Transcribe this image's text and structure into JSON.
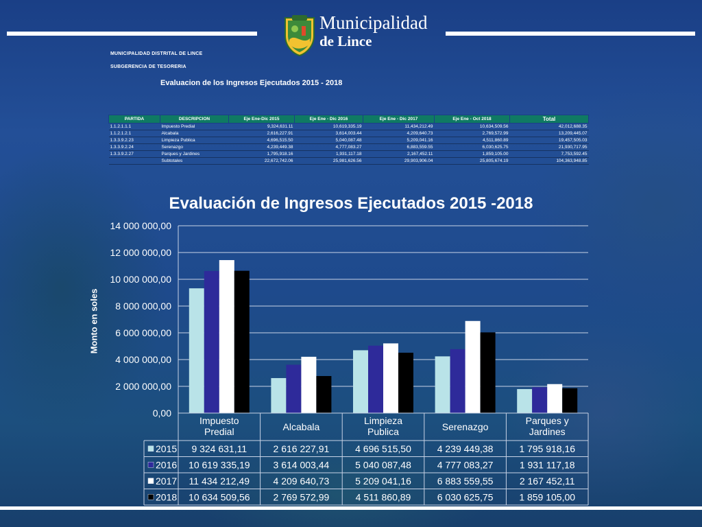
{
  "header": {
    "brand_line1": "Municipalidad",
    "brand_line2": "de Lince",
    "org_line1": "MUNICIPALIDAD DISTRITAL DE LINCE",
    "org_line2": "SUBGERENCIA DE TESORERIA",
    "doc_title": "Evaluacion de los Ingresos Ejecutados 2015 - 2018"
  },
  "table": {
    "headers": [
      "PARTIDA",
      "DESCRIPCION",
      "Eje Ene-Dic 2015",
      "Eje Ene - Dic 2016",
      "Eje Ene - Dic 2017",
      "Eje Ene - Oct 2018",
      "Total"
    ],
    "rows": [
      [
        "1.1.2.1.1.1",
        "Impuesto Predial",
        "9,324,631.11",
        "10,619,335.19",
        "11,434,212.49",
        "10,634,509.56",
        "42,012,688.35"
      ],
      [
        "1.1.2.1.2.1",
        "Alcabala",
        "2,616,227.91",
        "3,614,003.44",
        "4,209,640.73",
        "2,769,572.99",
        "13,209,445.07"
      ],
      [
        "1.3.3.9.2.23",
        "Limpieza Publica",
        "4,696,515.50",
        "5,040,087.48",
        "5,209,041.16",
        "4,511,860.89",
        "19,457,505.03"
      ],
      [
        "1.3.3.9.2.24",
        "Serenazgo",
        "4,239,449.38",
        "4,777,083.27",
        "6,883,559.55",
        "6,030,625.75",
        "21,930,717.95"
      ],
      [
        "1.3.3.9.2.27",
        "Parques y Jardines",
        "1,795,918.16",
        "1,931,117.18",
        "2,167,452.11",
        "1,859,105.00",
        "7,753,592.45"
      ],
      [
        "",
        "Subtotales",
        "22,672,742.06",
        "25,981,626.56",
        "29,903,906.04",
        "25,805,674.19",
        "104,363,948.85"
      ]
    ]
  },
  "chart_data": {
    "type": "bar",
    "title": "Evaluación de Ingresos Ejecutados 2015 -2018",
    "ylabel": "Monto en soles",
    "xlabel": "",
    "ylim": [
      0,
      14000000
    ],
    "yticks": [
      0,
      2000000,
      4000000,
      6000000,
      8000000,
      10000000,
      12000000,
      14000000
    ],
    "ytick_labels": [
      "0,00",
      "2 000 000,00",
      "4 000 000,00",
      "6 000 000,00",
      "8 000 000,00",
      "10 000 000,00",
      "12 000 000,00",
      "14 000 000,00"
    ],
    "categories": [
      [
        "Impuesto",
        "Predial"
      ],
      [
        "Alcabala"
      ],
      [
        "Limpieza",
        "Publica"
      ],
      [
        "Serenazgo"
      ],
      [
        "Parques y",
        "Jardines"
      ]
    ],
    "grid": true,
    "legend": "data-table",
    "series": [
      {
        "name": "2015",
        "color": "#b9e3e8",
        "values": [
          9324631.11,
          2616227.91,
          4696515.5,
          4239449.38,
          1795918.16
        ],
        "labels": [
          "9 324 631,11",
          "2 616 227,91",
          "4 696 515,50",
          "4 239 449,38",
          "1 795 918,16"
        ]
      },
      {
        "name": "2016",
        "color": "#2e2a9a",
        "values": [
          10619335.19,
          3614003.44,
          5040087.48,
          4777083.27,
          1931117.18
        ],
        "labels": [
          "10 619 335,19",
          "3 614 003,44",
          "5 040 087,48",
          "4 777 083,27",
          "1 931 117,18"
        ]
      },
      {
        "name": "2017",
        "color": "#ffffff",
        "values": [
          11434212.49,
          4209640.73,
          5209041.16,
          6883559.55,
          2167452.11
        ],
        "labels": [
          "11 434 212,49",
          "4 209 640,73",
          "5 209 041,16",
          "6 883 559,55",
          "2 167 452,11"
        ]
      },
      {
        "name": "2018",
        "color": "#000000",
        "values": [
          10634509.56,
          2769572.99,
          4511860.89,
          6030625.75,
          1859105.0
        ],
        "labels": [
          "10 634 509,56",
          "2 769 572,99",
          "4 511 860,89",
          "6 030 625,75",
          "1 859 105,00"
        ]
      }
    ]
  }
}
